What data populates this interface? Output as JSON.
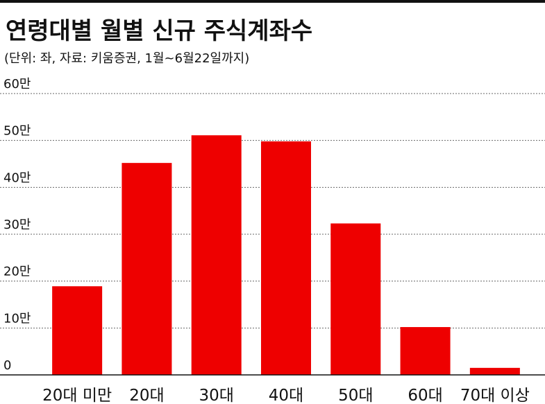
{
  "chart_data": {
    "type": "bar",
    "title": "연령대별 월별 신규 주식계좌수",
    "subtitle": "(단위: 좌, 자료: 키움증권, 1월~6월22일까지)",
    "categories": [
      "20대 미만",
      "20대",
      "30대",
      "40대",
      "50대",
      "60대",
      "70대 이상"
    ],
    "values": [
      189000,
      452000,
      511000,
      498000,
      323000,
      102000,
      15000
    ],
    "color": "#ee0000",
    "ylim": [
      0,
      600000
    ],
    "yticks": [
      0,
      {
        "value": 100000,
        "label": "10만"
      },
      {
        "value": 200000,
        "label": "20만"
      },
      {
        "value": 300000,
        "label": "30만"
      },
      {
        "value": 400000,
        "label": "40만"
      },
      {
        "value": 500000,
        "label": "50만"
      },
      {
        "value": 600000,
        "label": "60만"
      }
    ],
    "grid": true
  }
}
